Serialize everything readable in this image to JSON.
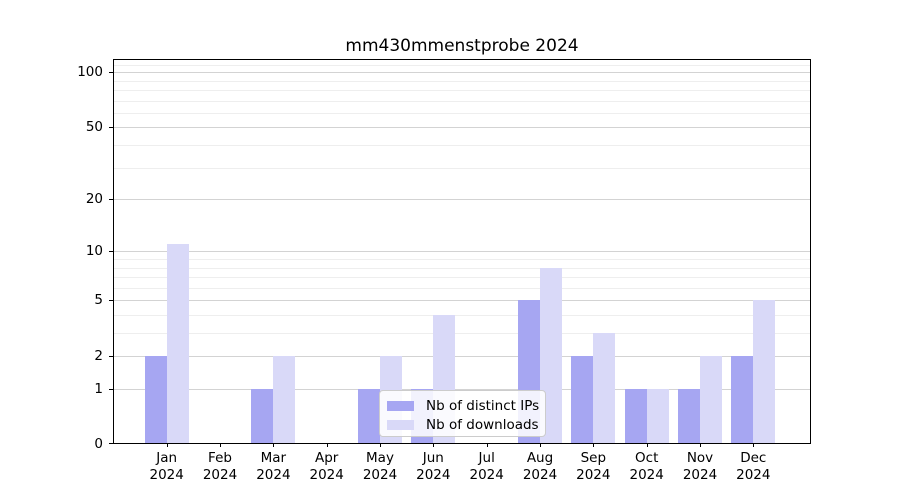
{
  "chart_data": {
    "type": "bar",
    "title": "mm430mmenstprobe 2024",
    "x_categories": [
      "Jan",
      "Feb",
      "Mar",
      "Apr",
      "May",
      "Jun",
      "Jul",
      "Aug",
      "Sep",
      "Oct",
      "Nov",
      "Dec"
    ],
    "x_year": "2024",
    "series": [
      {
        "name": "Nb of distinct IPs",
        "color": "#a6a6f2",
        "values": [
          2,
          0,
          1,
          0,
          1,
          1,
          0,
          5,
          2,
          1,
          1,
          2
        ]
      },
      {
        "name": "Nb of downloads",
        "color": "#d9d9f8",
        "values": [
          11,
          0,
          2,
          0,
          2,
          4,
          0,
          8,
          3,
          1,
          2,
          5
        ]
      }
    ],
    "y_scale": "log1p",
    "y_ticks": [
      0,
      1,
      2,
      5,
      10,
      20,
      50,
      100
    ],
    "y_minor_ticks": [
      3,
      4,
      6,
      7,
      8,
      9,
      30,
      40,
      60,
      70,
      80,
      90,
      110
    ],
    "ylim": [
      0,
      117
    ],
    "grid": "horizontal",
    "legend_position": "lower center",
    "colors": {
      "axis": "#000000",
      "grid_major": "#d3d3d3",
      "grid_minor": "#eeeeee",
      "legend_border": "#cccccc"
    }
  }
}
